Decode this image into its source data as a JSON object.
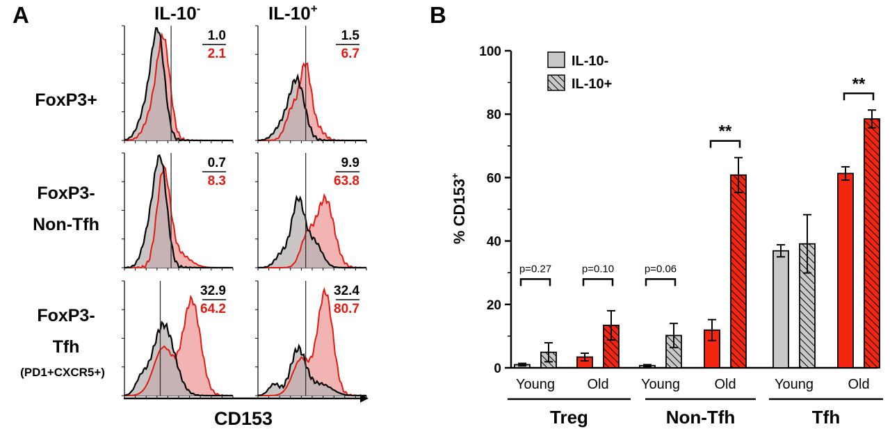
{
  "panel_a": {
    "letter": "A",
    "col_headers": [
      {
        "base": "IL-10",
        "sup": "-"
      },
      {
        "base": "IL-10",
        "sup": "+"
      }
    ],
    "row_labels": [
      {
        "lines": [
          "FoxP3+"
        ],
        "sub": ""
      },
      {
        "lines": [
          "FoxP3-",
          "Non-Tfh"
        ],
        "sub": ""
      },
      {
        "lines": [
          "FoxP3-",
          "Tfh"
        ],
        "sub": "(PD1+CXCR5+)"
      }
    ],
    "xlabel": "CD153",
    "gate_values": [
      [
        {
          "young": "1.0",
          "old": "2.1"
        },
        {
          "young": "1.5",
          "old": "6.7"
        }
      ],
      [
        {
          "young": "0.7",
          "old": "8.3"
        },
        {
          "young": "9.9",
          "old": "63.8"
        }
      ],
      [
        {
          "young": "32.9",
          "old": "64.2"
        },
        {
          "young": "32.4",
          "old": "80.7"
        }
      ]
    ],
    "colors": {
      "young": "#000000",
      "old": "#e3190f",
      "old_fill": "#f2b3b3",
      "young_fill": "#b8b3b3"
    }
  },
  "chart_data": {
    "type": "bar",
    "panel_letter": "B",
    "ylabel": "% CD153",
    "ylabel_sup": "+",
    "ylim": [
      0,
      100
    ],
    "yticks": [
      0,
      20,
      40,
      60,
      80,
      100
    ],
    "legend": [
      {
        "label": "IL-10-",
        "pattern": "solid"
      },
      {
        "label": "IL-10+",
        "pattern": "hatched"
      }
    ],
    "legend_position": "top-left",
    "groups": [
      {
        "name": "Treg",
        "subgroups": [
          {
            "label": "Young",
            "color": "#c8c8c8",
            "bars": [
              {
                "series": "IL-10-",
                "value": 1.0,
                "err": 0.4
              },
              {
                "series": "IL-10+",
                "value": 4.9,
                "err": 3.0
              }
            ],
            "sig": "p=0.27"
          },
          {
            "label": "Old",
            "color": "#f5260f",
            "bars": [
              {
                "series": "IL-10-",
                "value": 3.4,
                "err": 1.2
              },
              {
                "series": "IL-10+",
                "value": 13.4,
                "err": 4.6
              }
            ],
            "sig": "p=0.10"
          }
        ]
      },
      {
        "name": "Non-Tfh",
        "subgroups": [
          {
            "label": "Young",
            "color": "#c8c8c8",
            "bars": [
              {
                "series": "IL-10-",
                "value": 0.7,
                "err": 0.3
              },
              {
                "series": "IL-10+",
                "value": 10.2,
                "err": 3.8
              }
            ],
            "sig": "p=0.06"
          },
          {
            "label": "Old",
            "color": "#f5260f",
            "bars": [
              {
                "series": "IL-10-",
                "value": 11.9,
                "err": 3.3
              },
              {
                "series": "IL-10+",
                "value": 60.8,
                "err": 5.5
              }
            ],
            "sig": "**"
          }
        ]
      },
      {
        "name": "Tfh",
        "subgroups": [
          {
            "label": "Young",
            "color": "#c8c8c8",
            "bars": [
              {
                "series": "IL-10-",
                "value": 36.9,
                "err": 1.9
              },
              {
                "series": "IL-10+",
                "value": 39.1,
                "err": 9.2
              }
            ],
            "sig": ""
          },
          {
            "label": "Old",
            "color": "#f5260f",
            "bars": [
              {
                "series": "IL-10-",
                "value": 61.3,
                "err": 2.1
              },
              {
                "series": "IL-10+",
                "value": 78.5,
                "err": 2.8
              }
            ],
            "sig": "**"
          }
        ]
      }
    ]
  }
}
